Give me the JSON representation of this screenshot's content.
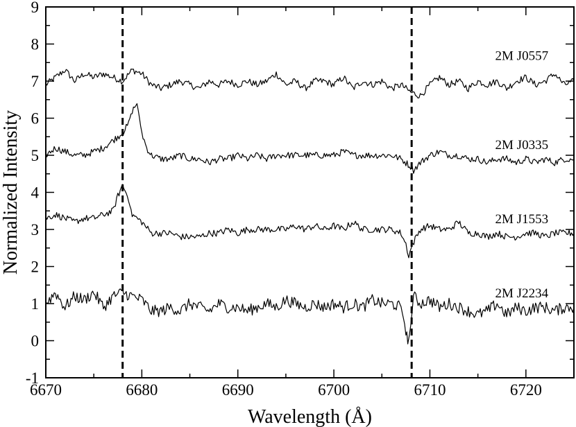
{
  "chart_data": {
    "type": "line",
    "title": "",
    "xlabel": "Wavelength (Å)",
    "ylabel": "Normalized Intensity",
    "xlim": [
      6670,
      6725
    ],
    "ylim": [
      -1,
      9
    ],
    "xticks": [
      6670,
      6680,
      6690,
      6700,
      6710,
      6720
    ],
    "xtick_labels": [
      "6670",
      "6680",
      "6690",
      "6700",
      "6710",
      "6720"
    ],
    "yticks": [
      -1,
      0,
      1,
      2,
      3,
      4,
      5,
      6,
      7,
      8,
      9
    ],
    "ytick_labels": [
      "-1",
      "0",
      "1",
      "2",
      "3",
      "4",
      "5",
      "6",
      "7",
      "8",
      "9"
    ],
    "grid": false,
    "legend": "none",
    "line_color": "#000000",
    "reference_lines": [
      6678.0,
      6708.1
    ],
    "series": [
      {
        "name": "2M J0557",
        "label_x": 6716.8,
        "label_y": 7.7,
        "points": [
          [
            6670,
            6.9
          ],
          [
            6671,
            7.1
          ],
          [
            6672,
            7.3
          ],
          [
            6673,
            7.0
          ],
          [
            6674,
            7.2
          ],
          [
            6675,
            7.1
          ],
          [
            6676,
            7.2
          ],
          [
            6677,
            7.1
          ],
          [
            6678,
            7.0
          ],
          [
            6679,
            7.3
          ],
          [
            6680,
            7.2
          ],
          [
            6681,
            6.9
          ],
          [
            6682,
            6.8
          ],
          [
            6683,
            6.9
          ],
          [
            6684,
            7.0
          ],
          [
            6685,
            6.9
          ],
          [
            6686,
            6.8
          ],
          [
            6687,
            7.0
          ],
          [
            6688,
            6.9
          ],
          [
            6689,
            7.0
          ],
          [
            6690,
            6.9
          ],
          [
            6691,
            7.0
          ],
          [
            6692,
            6.9
          ],
          [
            6693,
            7.0
          ],
          [
            6694,
            7.2
          ],
          [
            6695,
            6.9
          ],
          [
            6696,
            7.0
          ],
          [
            6697,
            6.8
          ],
          [
            6698,
            7.0
          ],
          [
            6699,
            7.0
          ],
          [
            6700,
            6.9
          ],
          [
            6701,
            7.1
          ],
          [
            6702,
            6.8
          ],
          [
            6703,
            7.0
          ],
          [
            6704,
            6.9
          ],
          [
            6705,
            7.0
          ],
          [
            6706,
            6.8
          ],
          [
            6707,
            6.9
          ],
          [
            6708,
            6.7
          ],
          [
            6709,
            6.6
          ],
          [
            6710,
            6.9
          ],
          [
            6711,
            7.1
          ],
          [
            6712,
            6.9
          ],
          [
            6713,
            7.0
          ],
          [
            6714,
            6.8
          ],
          [
            6715,
            7.0
          ],
          [
            6716,
            6.9
          ],
          [
            6717,
            7.0
          ],
          [
            6718,
            6.8
          ],
          [
            6719,
            7.0
          ],
          [
            6720,
            7.1
          ],
          [
            6721,
            6.9
          ],
          [
            6722,
            7.0
          ],
          [
            6723,
            7.2
          ],
          [
            6724,
            6.9
          ],
          [
            6725,
            7.0
          ]
        ]
      },
      {
        "name": "2M J0335",
        "label_x": 6716.8,
        "label_y": 5.3,
        "points": [
          [
            6670,
            5.0
          ],
          [
            6671,
            5.2
          ],
          [
            6672,
            5.1
          ],
          [
            6673,
            5.0
          ],
          [
            6674,
            5.0
          ],
          [
            6675,
            5.1
          ],
          [
            6676,
            5.2
          ],
          [
            6677,
            5.4
          ],
          [
            6678,
            5.6
          ],
          [
            6678.5,
            5.8
          ],
          [
            6679,
            6.2
          ],
          [
            6679.5,
            6.4
          ],
          [
            6680,
            5.6
          ],
          [
            6680.5,
            5.2
          ],
          [
            6681,
            5.0
          ],
          [
            6682,
            4.9
          ],
          [
            6683,
            4.9
          ],
          [
            6684,
            5.0
          ],
          [
            6685,
            4.9
          ],
          [
            6686,
            4.9
          ],
          [
            6687,
            4.8
          ],
          [
            6688,
            4.9
          ],
          [
            6689,
            4.9
          ],
          [
            6690,
            5.0
          ],
          [
            6691,
            4.9
          ],
          [
            6692,
            5.0
          ],
          [
            6693,
            4.9
          ],
          [
            6694,
            5.0
          ],
          [
            6695,
            5.0
          ],
          [
            6696,
            5.0
          ],
          [
            6697,
            5.0
          ],
          [
            6698,
            5.0
          ],
          [
            6699,
            5.0
          ],
          [
            6700,
            5.0
          ],
          [
            6701,
            5.1
          ],
          [
            6702,
            5.0
          ],
          [
            6703,
            5.0
          ],
          [
            6704,
            5.0
          ],
          [
            6705,
            5.0
          ],
          [
            6706,
            5.0
          ],
          [
            6707,
            4.9
          ],
          [
            6708,
            4.7
          ],
          [
            6708.3,
            4.6
          ],
          [
            6709,
            4.8
          ],
          [
            6710,
            5.0
          ],
          [
            6711,
            5.1
          ],
          [
            6712,
            5.0
          ],
          [
            6713,
            5.0
          ],
          [
            6714,
            4.9
          ],
          [
            6715,
            4.9
          ],
          [
            6716,
            4.8
          ],
          [
            6717,
            4.9
          ],
          [
            6718,
            4.9
          ],
          [
            6719,
            4.8
          ],
          [
            6720,
            4.9
          ],
          [
            6721,
            4.8
          ],
          [
            6722,
            4.9
          ],
          [
            6723,
            4.8
          ],
          [
            6724,
            4.9
          ],
          [
            6725,
            4.9
          ]
        ]
      },
      {
        "name": "2M J1553",
        "label_x": 6716.8,
        "label_y": 3.3,
        "points": [
          [
            6670,
            3.3
          ],
          [
            6671,
            3.4
          ],
          [
            6672,
            3.3
          ],
          [
            6673,
            3.2
          ],
          [
            6674,
            3.3
          ],
          [
            6675,
            3.3
          ],
          [
            6676,
            3.4
          ],
          [
            6677,
            3.5
          ],
          [
            6677.5,
            3.9
          ],
          [
            6678,
            4.2
          ],
          [
            6678.5,
            3.9
          ],
          [
            6679,
            3.4
          ],
          [
            6680,
            3.2
          ],
          [
            6681,
            2.9
          ],
          [
            6682,
            2.9
          ],
          [
            6683,
            2.9
          ],
          [
            6684,
            2.8
          ],
          [
            6685,
            2.8
          ],
          [
            6686,
            2.8
          ],
          [
            6687,
            2.9
          ],
          [
            6688,
            2.9
          ],
          [
            6689,
            3.0
          ],
          [
            6690,
            2.9
          ],
          [
            6691,
            3.0
          ],
          [
            6692,
            3.0
          ],
          [
            6693,
            3.0
          ],
          [
            6694,
            3.0
          ],
          [
            6695,
            3.0
          ],
          [
            6696,
            3.1
          ],
          [
            6697,
            3.0
          ],
          [
            6698,
            3.1
          ],
          [
            6699,
            3.0
          ],
          [
            6700,
            3.1
          ],
          [
            6701,
            3.0
          ],
          [
            6702,
            3.2
          ],
          [
            6703,
            3.0
          ],
          [
            6704,
            3.0
          ],
          [
            6705,
            3.0
          ],
          [
            6706,
            3.0
          ],
          [
            6707,
            2.9
          ],
          [
            6707.5,
            2.6
          ],
          [
            6707.8,
            2.3
          ],
          [
            6708.2,
            2.6
          ],
          [
            6709,
            3.0
          ],
          [
            6710,
            3.1
          ],
          [
            6711,
            3.0
          ],
          [
            6712,
            3.0
          ],
          [
            6713,
            3.2
          ],
          [
            6714,
            2.9
          ],
          [
            6715,
            2.9
          ],
          [
            6716,
            2.8
          ],
          [
            6717,
            2.9
          ],
          [
            6718,
            2.8
          ],
          [
            6719,
            2.8
          ],
          [
            6720,
            2.9
          ],
          [
            6721,
            2.9
          ],
          [
            6722,
            2.8
          ],
          [
            6723,
            2.9
          ],
          [
            6724,
            2.9
          ],
          [
            6725,
            2.9
          ]
        ]
      },
      {
        "name": "2M J2234",
        "label_x": 6716.8,
        "label_y": 1.3,
        "points": [
          [
            6670,
            1.0
          ],
          [
            6671,
            1.3
          ],
          [
            6672,
            0.9
          ],
          [
            6673,
            1.2
          ],
          [
            6674,
            1.1
          ],
          [
            6675,
            1.3
          ],
          [
            6676,
            0.9
          ],
          [
            6677,
            1.2
          ],
          [
            6678,
            1.3
          ],
          [
            6679,
            1.2
          ],
          [
            6680,
            1.1
          ],
          [
            6681,
            0.8
          ],
          [
            6682,
            0.8
          ],
          [
            6683,
            0.9
          ],
          [
            6684,
            0.8
          ],
          [
            6685,
            1.0
          ],
          [
            6686,
            0.9
          ],
          [
            6687,
            0.8
          ],
          [
            6688,
            1.0
          ],
          [
            6689,
            0.9
          ],
          [
            6690,
            0.9
          ],
          [
            6691,
            0.8
          ],
          [
            6692,
            0.9
          ],
          [
            6693,
            1.0
          ],
          [
            6694,
            0.9
          ],
          [
            6695,
            1.1
          ],
          [
            6696,
            1.0
          ],
          [
            6697,
            0.9
          ],
          [
            6698,
            1.0
          ],
          [
            6699,
            0.9
          ],
          [
            6700,
            1.0
          ],
          [
            6701,
            0.9
          ],
          [
            6702,
            1.0
          ],
          [
            6703,
            0.9
          ],
          [
            6704,
            1.1
          ],
          [
            6705,
            1.0
          ],
          [
            6706,
            1.0
          ],
          [
            6707,
            0.9
          ],
          [
            6707.5,
            0.3
          ],
          [
            6707.7,
            -0.1
          ],
          [
            6708,
            0.4
          ],
          [
            6708.3,
            1.2
          ],
          [
            6709,
            1.0
          ],
          [
            6710,
            1.1
          ],
          [
            6711,
            0.9
          ],
          [
            6712,
            1.0
          ],
          [
            6713,
            0.9
          ],
          [
            6714,
            0.8
          ],
          [
            6715,
            0.7
          ],
          [
            6716,
            0.8
          ],
          [
            6717,
            1.0
          ],
          [
            6718,
            0.7
          ],
          [
            6719,
            0.9
          ],
          [
            6720,
            0.8
          ],
          [
            6721,
            0.9
          ],
          [
            6722,
            0.9
          ],
          [
            6723,
            0.8
          ],
          [
            6724,
            0.9
          ],
          [
            6725,
            0.9
          ]
        ]
      }
    ]
  }
}
